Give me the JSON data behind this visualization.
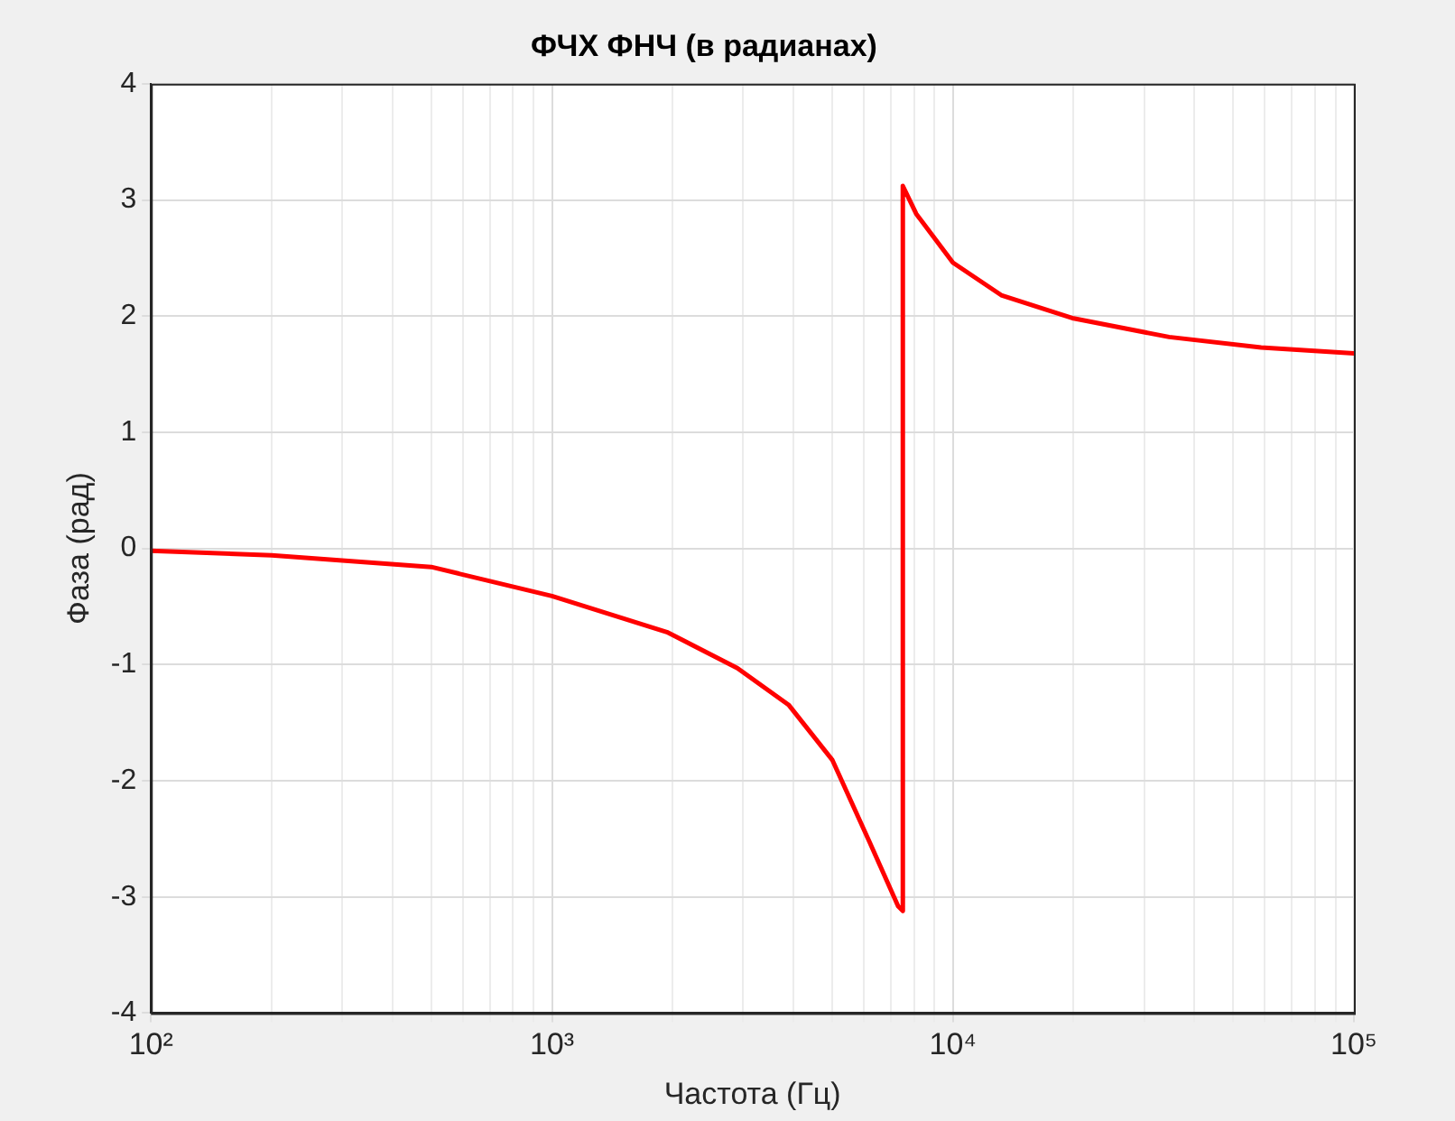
{
  "chart_data": {
    "type": "line",
    "title": "ФЧХ ФНЧ (в радианах)",
    "xlabel": "Частота (Гц)",
    "ylabel": "Фаза (рад)",
    "log": "x",
    "grid": true,
    "legend": false,
    "marker": "none",
    "line_style": "solid",
    "xlim": [
      100,
      100000
    ],
    "ylim": [
      -4,
      4
    ],
    "xticks": [
      {
        "value": 100,
        "label": "10²"
      },
      {
        "value": 200,
        "label": null
      },
      {
        "value": 300,
        "label": null
      },
      {
        "value": 400,
        "label": null
      },
      {
        "value": 500,
        "label": null
      },
      {
        "value": 600,
        "label": null
      },
      {
        "value": 700,
        "label": null
      },
      {
        "value": 800,
        "label": null
      },
      {
        "value": 900,
        "label": null
      },
      {
        "value": 1000,
        "label": "10³"
      },
      {
        "value": 2000,
        "label": null
      },
      {
        "value": 3000,
        "label": null
      },
      {
        "value": 4000,
        "label": null
      },
      {
        "value": 5000,
        "label": null
      },
      {
        "value": 6000,
        "label": null
      },
      {
        "value": 7000,
        "label": null
      },
      {
        "value": 8000,
        "label": null
      },
      {
        "value": 9000,
        "label": null
      },
      {
        "value": 10000,
        "label": "10⁴"
      },
      {
        "value": 20000,
        "label": null
      },
      {
        "value": 30000,
        "label": null
      },
      {
        "value": 40000,
        "label": null
      },
      {
        "value": 50000,
        "label": null
      },
      {
        "value": 60000,
        "label": null
      },
      {
        "value": 70000,
        "label": null
      },
      {
        "value": 80000,
        "label": null
      },
      {
        "value": 90000,
        "label": null
      },
      {
        "value": 100000,
        "label": "10⁵"
      }
    ],
    "yticks": [
      -4,
      -3,
      -2,
      -1,
      0,
      1,
      2,
      3,
      4
    ],
    "series": [
      {
        "color": "#ff0000",
        "x": [
          100,
          200,
          500,
          1000,
          1935,
          2900,
          3900,
          5000,
          6200,
          7300,
          7500,
          7500,
          8100,
          10000,
          13200,
          20000,
          34600,
          58700,
          100000
        ],
        "values": [
          -0.02,
          -0.06,
          -0.16,
          -0.41,
          -0.72,
          -1.03,
          -1.35,
          -1.82,
          -2.53,
          -3.08,
          -3.12,
          3.12,
          2.88,
          2.46,
          2.18,
          1.98,
          1.82,
          1.73,
          1.68
        ]
      }
    ]
  }
}
